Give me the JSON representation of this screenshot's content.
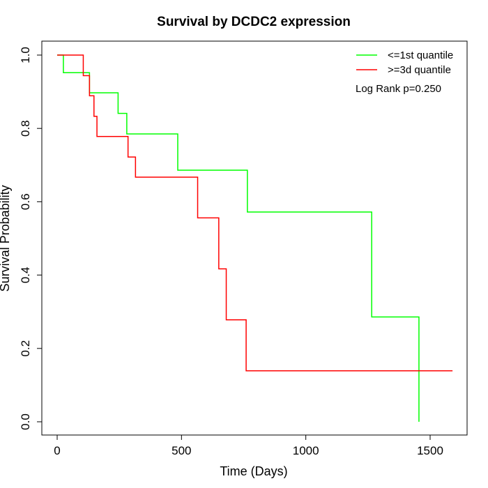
{
  "chart_data": {
    "type": "line",
    "subtype": "kaplan-meier step",
    "title": "Survival by DCDC2 expression",
    "xlabel": "Time (Days)",
    "ylabel": "Survival Probability",
    "xlim": [
      0,
      1590
    ],
    "ylim": [
      0,
      1.0
    ],
    "x_ticks": [
      0,
      500,
      1000,
      1500
    ],
    "x_tick_labels": [
      "0",
      "500",
      "1000",
      "1500"
    ],
    "y_ticks": [
      0.0,
      0.2,
      0.4,
      0.6,
      0.8,
      1.0
    ],
    "y_tick_labels": [
      "0.0",
      "0.2",
      "0.4",
      "0.6",
      "0.8",
      "1.0"
    ],
    "grid": false,
    "legend_position": "top-right",
    "annotation": "Log Rank p=0.250",
    "series": [
      {
        "name": "<=1st quantile",
        "color": "#00ff00",
        "x": [
          0,
          25,
          130,
          245,
          280,
          485,
          765,
          1265,
          1455,
          1455
        ],
        "y": [
          1.0,
          0.952,
          0.897,
          0.841,
          0.785,
          0.686,
          0.572,
          0.286,
          0.286,
          0.0
        ]
      },
      {
        "name": ">=3d quantile",
        "color": "#ff0000",
        "x": [
          0,
          105,
          130,
          140,
          148,
          160,
          285,
          315,
          565,
          650,
          680,
          760,
          1590
        ],
        "y": [
          1.0,
          0.944,
          0.889,
          0.889,
          0.833,
          0.778,
          0.722,
          0.667,
          0.556,
          0.417,
          0.278,
          0.139,
          0.139
        ]
      }
    ]
  }
}
